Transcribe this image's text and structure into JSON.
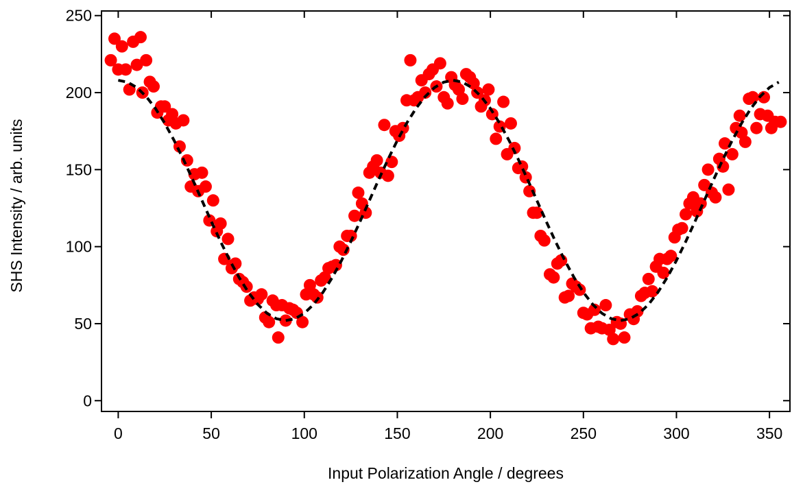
{
  "chart_data": {
    "type": "scatter",
    "x_label": "Input Polarization Angle  / degrees",
    "y_label": "SHS Intensity  / arb. units",
    "xlim": [
      -9,
      361
    ],
    "ylim": [
      -7,
      253
    ],
    "xticks": [
      0,
      50,
      100,
      150,
      200,
      250,
      300,
      350
    ],
    "yticks": [
      0,
      50,
      100,
      150,
      200,
      250
    ],
    "series": [
      {
        "type": "scatter",
        "color": "#ff0000",
        "x": [
          -4,
          -2,
          0,
          2,
          4,
          6,
          8,
          10,
          12,
          13,
          15,
          17,
          19,
          21,
          23,
          25,
          27,
          29,
          31,
          33,
          35,
          37,
          39,
          41,
          43,
          45,
          47,
          49,
          51,
          53,
          55,
          57,
          59,
          61,
          63,
          65,
          67,
          69,
          71,
          73,
          75,
          77,
          79,
          81,
          83,
          85,
          86,
          88,
          90,
          92,
          94,
          96,
          99,
          101,
          103,
          105,
          107,
          109,
          111,
          113,
          115,
          117,
          119,
          121,
          123,
          125,
          127,
          129,
          131,
          133,
          135,
          137,
          139,
          141,
          143,
          145,
          147,
          149,
          151,
          153,
          155,
          157,
          159,
          161,
          163,
          165,
          167,
          169,
          171,
          173,
          175,
          177,
          179,
          181,
          183,
          185,
          187,
          189,
          191,
          193,
          195,
          197,
          199,
          201,
          203,
          205,
          207,
          209,
          211,
          213,
          215,
          217,
          219,
          221,
          223,
          225,
          227,
          229,
          232,
          234,
          236,
          238,
          240,
          242,
          244,
          246,
          248,
          250,
          252,
          254,
          256,
          258,
          260,
          262,
          264,
          266,
          268,
          270,
          272,
          275,
          277,
          279,
          281,
          283,
          285,
          287,
          289,
          291,
          293,
          295,
          297,
          299,
          301,
          303,
          305,
          307,
          309,
          311,
          313,
          315,
          317,
          319,
          321,
          323,
          325,
          326,
          328,
          330,
          332,
          334,
          335,
          337,
          339,
          341,
          343,
          345,
          347,
          349,
          351,
          353,
          356
        ],
        "values": [
          221,
          235,
          215,
          230,
          215,
          202,
          233,
          218,
          236,
          200,
          221,
          207,
          204,
          187,
          191,
          191,
          182,
          186,
          180,
          165,
          182,
          156,
          139,
          147,
          136,
          148,
          139,
          117,
          130,
          110,
          115,
          92,
          105,
          86,
          89,
          79,
          77,
          74,
          65,
          67,
          66,
          69,
          54,
          51,
          65,
          62,
          41,
          62,
          52,
          60,
          59,
          57,
          51,
          69,
          75,
          69,
          67,
          78,
          80,
          86,
          87,
          88,
          100,
          98,
          107,
          107,
          120,
          135,
          128,
          122,
          148,
          152,
          156,
          148,
          179,
          146,
          155,
          175,
          172,
          177,
          195,
          221,
          195,
          197,
          208,
          200,
          212,
          215,
          204,
          219,
          197,
          193,
          210,
          205,
          202,
          196,
          212,
          210,
          206,
          200,
          191,
          195,
          202,
          186,
          170,
          178,
          194,
          160,
          180,
          164,
          151,
          152,
          145,
          136,
          122,
          122,
          107,
          104,
          82,
          80,
          89,
          91,
          67,
          68,
          76,
          74,
          72,
          57,
          56,
          47,
          59,
          48,
          47,
          62,
          46,
          40,
          51,
          50,
          41,
          56,
          53,
          58,
          68,
          70,
          79,
          71,
          87,
          92,
          83,
          92,
          94,
          106,
          111,
          112,
          121,
          128,
          132,
          123,
          128,
          140,
          150,
          135,
          132,
          157,
          152,
          167,
          137,
          160,
          177,
          185,
          174,
          168,
          196,
          197,
          177,
          186,
          197,
          185,
          177,
          181,
          181
        ]
      },
      {
        "type": "line",
        "color": "#000000",
        "dashed": true,
        "x": [
          0,
          5,
          10,
          15,
          20,
          25,
          30,
          35,
          40,
          45,
          50,
          55,
          60,
          65,
          70,
          75,
          80,
          85,
          90,
          95,
          100,
          105,
          110,
          115,
          120,
          125,
          130,
          135,
          140,
          145,
          150,
          155,
          160,
          165,
          170,
          175,
          180,
          185,
          190,
          195,
          200,
          205,
          210,
          215,
          220,
          225,
          230,
          235,
          240,
          245,
          250,
          255,
          260,
          265,
          270,
          275,
          280,
          285,
          290,
          295,
          300,
          305,
          310,
          315,
          320,
          325,
          330,
          335,
          340,
          345,
          350,
          355
        ],
        "values": [
          208,
          206.8,
          203.3,
          197.5,
          189.7,
          180.1,
          169,
          156.7,
          143.6,
          130,
          116.4,
          103.3,
          91,
          79.9,
          70.3,
          62.5,
          56.7,
          53.2,
          52,
          53.2,
          56.7,
          62.5,
          70.3,
          79.9,
          91,
          103.3,
          116.4,
          130,
          143.6,
          156.7,
          169,
          180.1,
          189.7,
          197.5,
          203.3,
          206.8,
          208,
          206.8,
          203.3,
          197.5,
          189.7,
          180.1,
          169,
          156.7,
          143.6,
          130,
          116.4,
          103.3,
          91,
          79.9,
          70.3,
          62.5,
          56.7,
          53.2,
          52,
          53.2,
          56.7,
          62.5,
          70.3,
          79.9,
          91,
          103.3,
          116.4,
          130,
          143.6,
          156.7,
          169,
          180.1,
          189.7,
          197.5,
          203.3,
          206.8
        ]
      }
    ]
  }
}
